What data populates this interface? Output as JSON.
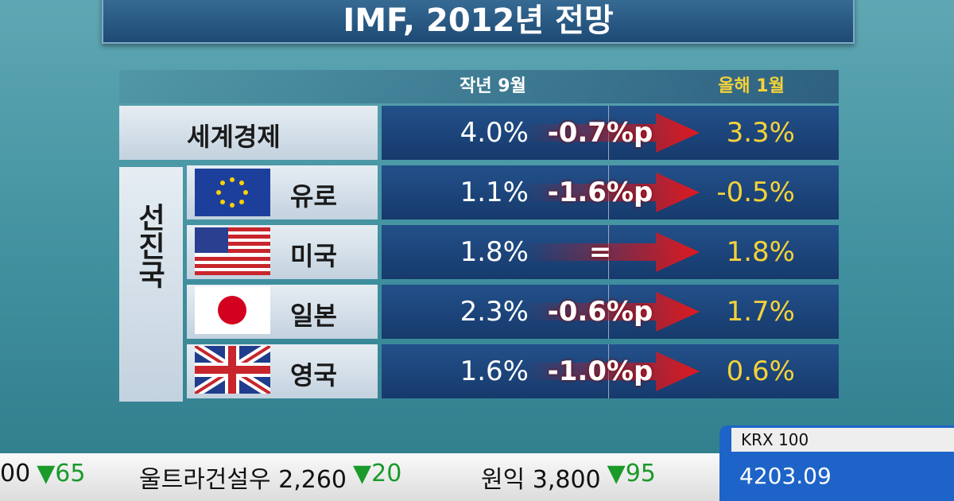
{
  "header": {
    "title": "IMF, 2012년 전망"
  },
  "table": {
    "columns": [
      "작년 9월",
      "올해 1월"
    ],
    "world": {
      "label": "세계경제",
      "before": "4.0%",
      "change": "-0.7%p",
      "after": "3.3%"
    },
    "group_label": "선진국",
    "rows": [
      {
        "label": "유로",
        "before": "1.1%",
        "change": "-1.6%p",
        "after": "-0.5%"
      },
      {
        "label": "미국",
        "before": "1.8%",
        "change": "=",
        "after": "1.8%"
      },
      {
        "label": "일본",
        "before": "2.3%",
        "change": "-0.6%p",
        "after": "1.7%"
      },
      {
        "label": "영국",
        "before": "1.6%",
        "change": "-1.0%p",
        "after": "0.6%"
      }
    ]
  },
  "ticker": {
    "items": [
      {
        "name": "00",
        "change": "▼65"
      },
      {
        "name": "울트라건설우 2,260",
        "change": "▼20"
      },
      {
        "name": "원익 3,800",
        "change": "▼95"
      }
    ],
    "index_name": "KRX 100",
    "index_value": "4203.09"
  }
}
